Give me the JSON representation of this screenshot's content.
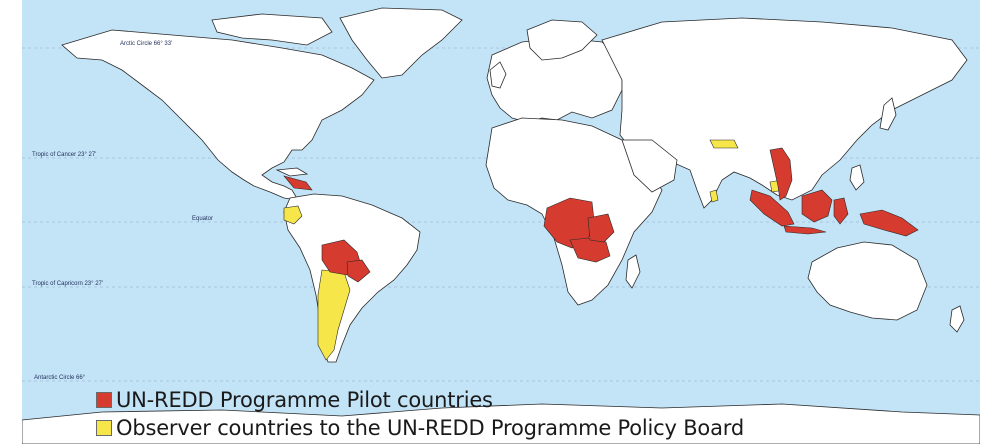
{
  "map": {
    "colors": {
      "ocean": "#c3e3f6",
      "land": "#ffffff",
      "border": "#2a2a2a",
      "pilot": "#d63b2f",
      "observer": "#f6e64a"
    },
    "latitude_labels": {
      "arctic": "Arctic Circle 66° 33'",
      "cancer": "Tropic of Cancer 23° 27'",
      "equator": "Equator",
      "capricorn": "Tropic of Capricorn 23° 27'",
      "antarctic": "Antarctic Circle 66°"
    }
  },
  "legend": [
    {
      "label": "UN-REDD Programme Pilot countries",
      "color": "#d63b2f"
    },
    {
      "label": "Observer countries to the UN-REDD Programme Policy Board",
      "color": "#f6e64a"
    }
  ]
}
